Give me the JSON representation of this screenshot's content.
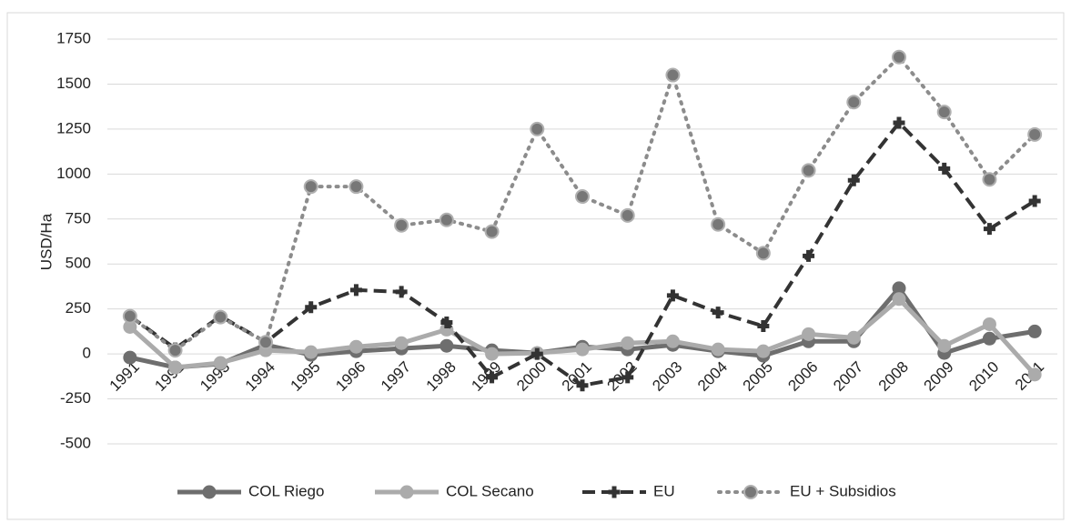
{
  "chart_data": {
    "type": "line",
    "y_label": "USD/Ha",
    "categories": [
      "1991",
      "1992",
      "1993",
      "1994",
      "1995",
      "1996",
      "1997",
      "1998",
      "1999",
      "2000",
      "2001",
      "2002",
      "2003",
      "2004",
      "2005",
      "2006",
      "2007",
      "2008",
      "2009",
      "2010",
      "2011"
    ],
    "ylim": [
      -500,
      1750
    ],
    "yticks": [
      -500,
      -250,
      0,
      250,
      500,
      750,
      1000,
      1250,
      1500,
      1750
    ],
    "grid": true,
    "legend": "bottom",
    "series": [
      {
        "name": "COL Riego",
        "color": "#6e6e6e",
        "line_style": "solid",
        "marker": "circle",
        "values": [
          -20,
          -75,
          -55,
          50,
          -5,
          15,
          30,
          45,
          20,
          5,
          40,
          25,
          50,
          15,
          -10,
          70,
          70,
          365,
          5,
          85,
          125
        ]
      },
      {
        "name": "COL Secano",
        "color": "#ababab",
        "line_style": "solid",
        "marker": "circle",
        "values": [
          150,
          -75,
          -50,
          20,
          10,
          40,
          60,
          135,
          0,
          5,
          25,
          60,
          70,
          25,
          15,
          110,
          90,
          305,
          45,
          165,
          -115
        ]
      },
      {
        "name": "EU",
        "color": "#333333",
        "line_style": "dashed",
        "marker": "cross",
        "values": [
          210,
          30,
          210,
          65,
          260,
          355,
          345,
          175,
          -130,
          0,
          -175,
          -130,
          325,
          230,
          155,
          545,
          965,
          1285,
          1030,
          695,
          850
        ]
      },
      {
        "name": "EU + Subsidios",
        "color": "#8c8c8c",
        "line_style": "dotted",
        "marker": "circle",
        "values": [
          210,
          20,
          205,
          65,
          930,
          930,
          715,
          745,
          680,
          1250,
          875,
          770,
          1550,
          720,
          560,
          1020,
          1400,
          1650,
          1345,
          970,
          1220
        ]
      }
    ]
  }
}
